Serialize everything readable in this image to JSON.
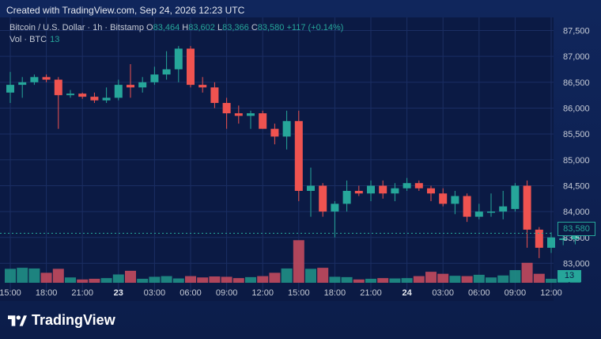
{
  "header": {
    "created_text": "Created with TradingView.com, Sep 24, 2026 12:23 UTC"
  },
  "legend": {
    "symbol": "Bitcoin / U.S. Dollar · 1h · Bitstamp",
    "open_label": "O",
    "open": "83,464",
    "high_label": "H",
    "high": "83,602",
    "low_label": "L",
    "low": "83,366",
    "close_label": "C",
    "close": "83,580",
    "change": "+117 (+0.14%)"
  },
  "volume_legend": {
    "label": "Vol · BTC",
    "value": "13"
  },
  "price_tag": "83,580",
  "volume_tag": "13",
  "brand": {
    "name": "TradingView"
  },
  "colors": {
    "up": "#26a69a",
    "down": "#ef5350",
    "up_volume": "#1f8f86",
    "down_volume": "#c24a5e",
    "grid": "#1b2e63",
    "background": "#0b1a44"
  },
  "chart_data": {
    "type": "candlestick",
    "symbol": "Bitcoin / U.S. Dollar",
    "interval": "1h",
    "exchange": "Bitstamp",
    "y_axis": {
      "ticks": [
        "83,000",
        "83,500",
        "84,000",
        "84,500",
        "85,000",
        "85,500",
        "86,000",
        "86,500",
        "87,000",
        "87,500"
      ],
      "range": [
        82700,
        87600
      ]
    },
    "x_axis": {
      "ticks": [
        {
          "label": "15:00",
          "index": 0,
          "bold": false
        },
        {
          "label": "18:00",
          "index": 3,
          "bold": false
        },
        {
          "label": "21:00",
          "index": 6,
          "bold": false
        },
        {
          "label": "23",
          "index": 9,
          "bold": true
        },
        {
          "label": "03:00",
          "index": 12,
          "bold": false
        },
        {
          "label": "06:00",
          "index": 15,
          "bold": false
        },
        {
          "label": "09:00",
          "index": 18,
          "bold": false
        },
        {
          "label": "12:00",
          "index": 21,
          "bold": false
        },
        {
          "label": "15:00",
          "index": 24,
          "bold": false
        },
        {
          "label": "18:00",
          "index": 27,
          "bold": false
        },
        {
          "label": "21:00",
          "index": 30,
          "bold": false
        },
        {
          "label": "24",
          "index": 33,
          "bold": true
        },
        {
          "label": "03:00",
          "index": 36,
          "bold": false
        },
        {
          "label": "06:00",
          "index": 39,
          "bold": false
        },
        {
          "label": "09:00",
          "index": 42,
          "bold": false
        },
        {
          "label": "12:00",
          "index": 45,
          "bold": false
        }
      ]
    },
    "candles": [
      {
        "o": 86300,
        "h": 86700,
        "l": 86100,
        "c": 86450
      },
      {
        "o": 86450,
        "h": 86600,
        "l": 86200,
        "c": 86500
      },
      {
        "o": 86500,
        "h": 86650,
        "l": 86450,
        "c": 86600
      },
      {
        "o": 86600,
        "h": 86650,
        "l": 86500,
        "c": 86550
      },
      {
        "o": 86550,
        "h": 86600,
        "l": 85600,
        "c": 86250
      },
      {
        "o": 86250,
        "h": 86350,
        "l": 86200,
        "c": 86280
      },
      {
        "o": 86280,
        "h": 86300,
        "l": 86180,
        "c": 86220
      },
      {
        "o": 86220,
        "h": 86300,
        "l": 86100,
        "c": 86150
      },
      {
        "o": 86150,
        "h": 86400,
        "l": 86100,
        "c": 86200
      },
      {
        "o": 86200,
        "h": 86550,
        "l": 86150,
        "c": 86450
      },
      {
        "o": 86450,
        "h": 86850,
        "l": 86200,
        "c": 86400
      },
      {
        "o": 86400,
        "h": 86600,
        "l": 86300,
        "c": 86500
      },
      {
        "o": 86500,
        "h": 86800,
        "l": 86450,
        "c": 86650
      },
      {
        "o": 86650,
        "h": 87100,
        "l": 86550,
        "c": 86750
      },
      {
        "o": 86750,
        "h": 87200,
        "l": 86500,
        "c": 87150
      },
      {
        "o": 87150,
        "h": 87200,
        "l": 86400,
        "c": 86450
      },
      {
        "o": 86450,
        "h": 86600,
        "l": 86300,
        "c": 86400
      },
      {
        "o": 86400,
        "h": 86500,
        "l": 86000,
        "c": 86100
      },
      {
        "o": 86100,
        "h": 86200,
        "l": 85600,
        "c": 85900
      },
      {
        "o": 85900,
        "h": 86050,
        "l": 85700,
        "c": 85850
      },
      {
        "o": 85850,
        "h": 85950,
        "l": 85600,
        "c": 85900
      },
      {
        "o": 85900,
        "h": 85950,
        "l": 85600,
        "c": 85600
      },
      {
        "o": 85600,
        "h": 85700,
        "l": 85300,
        "c": 85450
      },
      {
        "o": 85450,
        "h": 85950,
        "l": 85200,
        "c": 85750
      },
      {
        "o": 85750,
        "h": 85950,
        "l": 84200,
        "c": 84400
      },
      {
        "o": 84400,
        "h": 84850,
        "l": 83900,
        "c": 84500
      },
      {
        "o": 84500,
        "h": 84550,
        "l": 83900,
        "c": 84000
      },
      {
        "o": 84000,
        "h": 84200,
        "l": 83500,
        "c": 84150
      },
      {
        "o": 84150,
        "h": 84600,
        "l": 84000,
        "c": 84400
      },
      {
        "o": 84400,
        "h": 84500,
        "l": 84300,
        "c": 84350
      },
      {
        "o": 84350,
        "h": 84600,
        "l": 84200,
        "c": 84500
      },
      {
        "o": 84500,
        "h": 84600,
        "l": 84250,
        "c": 84350
      },
      {
        "o": 84350,
        "h": 84550,
        "l": 84200,
        "c": 84450
      },
      {
        "o": 84450,
        "h": 84650,
        "l": 84400,
        "c": 84550
      },
      {
        "o": 84550,
        "h": 84600,
        "l": 84400,
        "c": 84450
      },
      {
        "o": 84450,
        "h": 84500,
        "l": 84200,
        "c": 84350
      },
      {
        "o": 84350,
        "h": 84450,
        "l": 84100,
        "c": 84150
      },
      {
        "o": 84150,
        "h": 84400,
        "l": 83950,
        "c": 84300
      },
      {
        "o": 84300,
        "h": 84350,
        "l": 83800,
        "c": 83900
      },
      {
        "o": 83900,
        "h": 84150,
        "l": 83850,
        "c": 84000
      },
      {
        "o": 84000,
        "h": 84350,
        "l": 83900,
        "c": 84000
      },
      {
        "o": 84000,
        "h": 84400,
        "l": 83850,
        "c": 84100
      },
      {
        "o": 84050,
        "h": 84550,
        "l": 84000,
        "c": 84500
      },
      {
        "o": 84500,
        "h": 84600,
        "l": 83300,
        "c": 83650
      },
      {
        "o": 83650,
        "h": 83700,
        "l": 83100,
        "c": 83300
      },
      {
        "o": 83300,
        "h": 83600,
        "l": 83200,
        "c": 83500
      },
      {
        "o": 83450,
        "h": 83600,
        "l": 83350,
        "c": 83480
      },
      {
        "o": 83464,
        "h": 83602,
        "l": 83366,
        "c": 83580
      }
    ],
    "volume": [
      42,
      45,
      43,
      30,
      42,
      16,
      10,
      12,
      14,
      25,
      36,
      12,
      18,
      20,
      13,
      20,
      16,
      19,
      18,
      14,
      17,
      20,
      30,
      43,
      128,
      42,
      45,
      18,
      17,
      10,
      12,
      14,
      13,
      14,
      20,
      33,
      27,
      21,
      20,
      24,
      16,
      22,
      38,
      60,
      27,
      12,
      9,
      13
    ]
  }
}
